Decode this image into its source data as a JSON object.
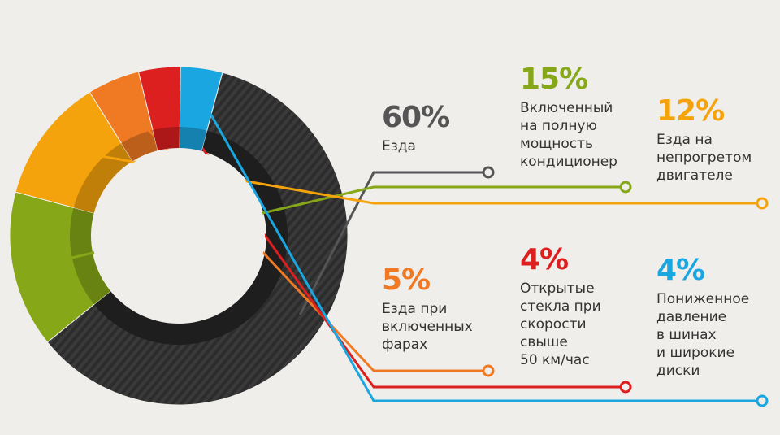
{
  "chart_data": {
    "type": "pie",
    "donut": true,
    "unit": "%",
    "series": [
      {
        "value": 60,
        "label": "Езда",
        "display": "60%",
        "color": "#555555"
      },
      {
        "value": 15,
        "label": "Включенный\nна полную\nмощность\nкондиционер",
        "display": "15%",
        "color": "#86a818"
      },
      {
        "value": 12,
        "label": "Езда на\nнепрогретом\nдвигателе",
        "display": "12%",
        "color": "#f5a30c"
      },
      {
        "value": 5,
        "label": "Езда при\nвключенных\nфарах",
        "display": "5%",
        "color": "#f07a23"
      },
      {
        "value": 4,
        "label": "Открытые\nстекла при\nскорости\nсвыше\n50 км/час",
        "display": "4%",
        "color": "#dc1f1f"
      },
      {
        "value": 4,
        "label": "Пониженное\nдавление\nв шинах\nи широкие\nдиски",
        "display": "4%",
        "color": "#1aa6e0"
      }
    ]
  }
}
